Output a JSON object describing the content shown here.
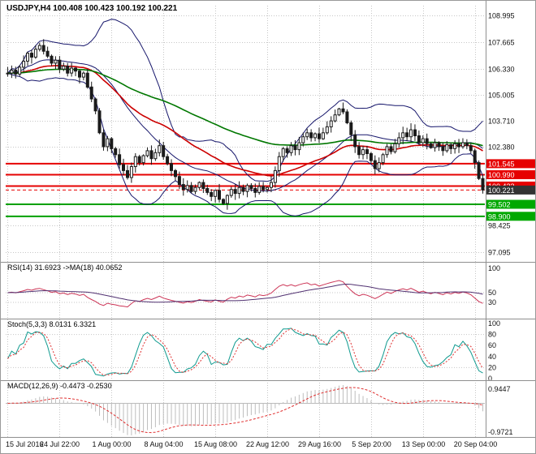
{
  "window": {
    "title": "USDJPY,H4 100.408 100.423 100.192 100.221"
  },
  "chart_data": {
    "type": "candlestick",
    "symbol": "USDJPY",
    "timeframe": "H4",
    "ohlc_header": {
      "open": "100.408",
      "high": "100.423",
      "low": "100.192",
      "close": "100.221"
    },
    "x_labels": [
      "15 Jul 2016",
      "24 Jul 22:00",
      "1 Aug 00:00",
      "8 Aug 04:00",
      "15 Aug 08:00",
      "22 Aug 12:00",
      "29 Aug 16:00",
      "5 Sep 20:00",
      "13 Sep 00:00",
      "20 Sep 04:00"
    ],
    "main": {
      "ylim": [
        96.61,
        109.49
      ],
      "y_ticks": [
        "108.995",
        "107.665",
        "106.330",
        "105.005",
        "103.710",
        "102.380",
        "98.425",
        "97.095"
      ],
      "closes": [
        106.1,
        106.25,
        106.05,
        106.4,
        106.7,
        107.1,
        106.9,
        107.3,
        107.49,
        107.2,
        106.95,
        106.6,
        106.75,
        106.3,
        106.45,
        106.1,
        106.35,
        106.2,
        105.9,
        106.1,
        105.4,
        104.8,
        104.2,
        103.1,
        102.4,
        102.8,
        102.3,
        102.0,
        101.5,
        101.2,
        100.85,
        101.4,
        101.9,
        101.6,
        101.95,
        102.2,
        101.8,
        102.1,
        102.45,
        101.9,
        101.55,
        101.2,
        100.9,
        100.5,
        100.25,
        100.45,
        100.15,
        100.35,
        100.6,
        100.3,
        100.1,
        99.9,
        100.2,
        99.75,
        99.55,
        99.95,
        100.25,
        100.05,
        100.35,
        100.15,
        100.45,
        100.3,
        100.1,
        100.4,
        100.25,
        100.35,
        100.6,
        101.2,
        101.9,
        102.3,
        102.1,
        102.45,
        102.25,
        102.6,
        102.9,
        103.1,
        102.85,
        103.05,
        102.8,
        103.1,
        103.4,
        103.7,
        104.0,
        104.3,
        104.15,
        103.6,
        103.0,
        102.4,
        102.0,
        102.25,
        102.05,
        101.7,
        101.3,
        101.6,
        102.0,
        102.4,
        102.15,
        102.55,
        102.85,
        103.1,
        102.9,
        103.25,
        102.95,
        102.6,
        102.8,
        102.55,
        102.35,
        102.6,
        102.4,
        102.2,
        102.5,
        102.3,
        102.55,
        102.4,
        102.6,
        102.45,
        102.2,
        101.6,
        100.8,
        100.22
      ],
      "levels": {
        "resistance_red": [
          101.545,
          100.99,
          100.423
        ],
        "support_green": [
          99.502,
          98.9
        ],
        "current_price": 100.221
      },
      "badges": [
        {
          "label": "101.545",
          "type": "red"
        },
        {
          "label": "100.990",
          "type": "red"
        },
        {
          "label": "100.423",
          "type": "red"
        },
        {
          "label": "100.221",
          "type": "price"
        },
        {
          "label": "99.502",
          "type": "green"
        },
        {
          "label": "98.900",
          "type": "green"
        }
      ],
      "overlays": {
        "bollinger_period": 20,
        "ma_fast_red": 34,
        "ma_slow_green": 80
      }
    },
    "rsi": {
      "label": "RSI(14) 31.6923  ->MA(18) 40.0652",
      "period": 14,
      "ma_period": 18,
      "current": 31.6923,
      "ma_current": 40.0652,
      "y_ticks": [
        "100",
        "50",
        "30"
      ],
      "levels": [
        50,
        30
      ]
    },
    "stoch": {
      "label": "Stoch(5,3,3) 8.0131 6.3321",
      "k": 5,
      "d": 3,
      "slowing": 3,
      "current_k": 8.0131,
      "current_d": 6.3321,
      "y_ticks": [
        "100",
        "80",
        "60",
        "40",
        "20",
        "0"
      ],
      "levels": [
        80,
        20
      ]
    },
    "macd": {
      "label": "MACD(12,26,9) -0.4473 -0.2530",
      "fast": 12,
      "slow": 26,
      "signal": 9,
      "current": -0.4473,
      "current_signal": -0.253,
      "y_ticks": [
        "0.9447",
        "-0.9721"
      ]
    }
  },
  "colors": {
    "background": "#ffffff",
    "grid": "#c6c6c6",
    "separator": "#8f8f8f",
    "axis_text": "#111111",
    "bar": "#1a1a1a",
    "bollinger": "#16166b",
    "ma_red": "#cc0000",
    "ma_green": "#007700",
    "level_red": "#e60000",
    "level_green": "#00a000",
    "badge_red": "#e60000",
    "badge_green": "#00a800",
    "badge_price": "#333333",
    "rsi": "#cc3355",
    "rsi_ma": "#503070",
    "stoch_k": "#0f9a8f",
    "stoch_d": "#e03030",
    "macd_hist": "#bdbdbd",
    "macd_signal": "#e03030"
  }
}
